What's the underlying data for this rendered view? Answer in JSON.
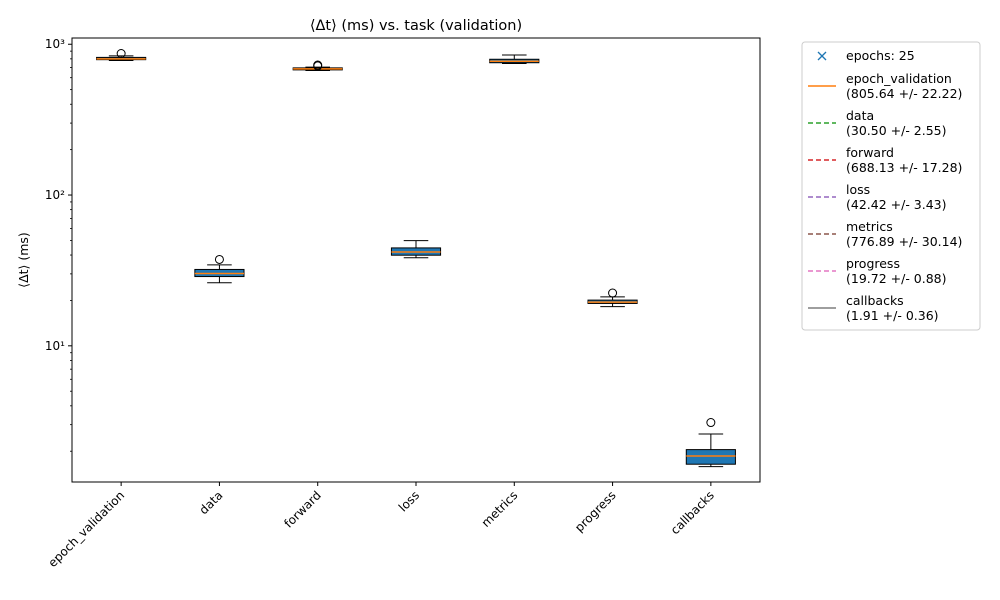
{
  "chart_data": {
    "type": "box",
    "title": "⟨Δt⟩ (ms) vs. task (validation)",
    "xlabel": "",
    "ylabel": "⟨Δt⟩ (ms)",
    "yscale": "log",
    "ylim": [
      1.25,
      1100
    ],
    "yticks": [
      {
        "value": 10,
        "label": "10¹"
      },
      {
        "value": 100,
        "label": "10²"
      },
      {
        "value": 1000,
        "label": "10³"
      }
    ],
    "grid": false,
    "legend_position": "outside-right",
    "categories": [
      "epoch_validation",
      "data",
      "forward",
      "loss",
      "metrics",
      "progress",
      "callbacks"
    ],
    "boxes": [
      {
        "category": "epoch_validation",
        "whislo": 780,
        "q1": 790,
        "med": 800,
        "q3": 818,
        "whishi": 838,
        "fliers": [
          868
        ]
      },
      {
        "category": "data",
        "whislo": 26.2,
        "q1": 28.8,
        "med": 30.2,
        "q3": 32.1,
        "whishi": 34.4,
        "fliers": [
          37.4
        ]
      },
      {
        "category": "forward",
        "whislo": 670,
        "q1": 676,
        "med": 686,
        "q3": 697,
        "whishi": 705,
        "fliers": [
          718,
          728
        ]
      },
      {
        "category": "loss",
        "whislo": 38.4,
        "q1": 39.9,
        "med": 41.9,
        "q3": 44.6,
        "whishi": 49.8,
        "fliers": []
      },
      {
        "category": "metrics",
        "whislo": 745,
        "q1": 754,
        "med": 771,
        "q3": 795,
        "whishi": 848,
        "fliers": []
      },
      {
        "category": "progress",
        "whislo": 18.2,
        "q1": 19.1,
        "med": 19.5,
        "q3": 20.1,
        "whishi": 21.1,
        "fliers": [
          22.4
        ]
      },
      {
        "category": "callbacks",
        "whislo": 1.58,
        "q1": 1.64,
        "med": 1.86,
        "q3": 2.05,
        "whishi": 2.6,
        "fliers": [
          3.1
        ]
      }
    ],
    "colors": {
      "box_fill": "#1f77b4",
      "median": "#ff7f0e",
      "epochs_marker": "#1f77b4"
    },
    "legend": [
      {
        "text": "epochs: 25",
        "text2": "",
        "color": "#1f77b4",
        "style": "marker-x"
      },
      {
        "text": "epoch_validation",
        "text2": "(805.64 +/- 22.22)",
        "color": "#ff7f0e",
        "style": "solid"
      },
      {
        "text": "data",
        "text2": "(30.50 +/- 2.55)",
        "color": "#2ca02c",
        "style": "dashed"
      },
      {
        "text": "forward",
        "text2": "(688.13 +/- 17.28)",
        "color": "#d62728",
        "style": "dashed"
      },
      {
        "text": "loss",
        "text2": "(42.42 +/- 3.43)",
        "color": "#9467bd",
        "style": "dashed"
      },
      {
        "text": "metrics",
        "text2": "(776.89 +/- 30.14)",
        "color": "#8c564b",
        "style": "dashed"
      },
      {
        "text": "progress",
        "text2": "(19.72 +/- 0.88)",
        "color": "#e377c2",
        "style": "dashed"
      },
      {
        "text": "callbacks",
        "text2": "(1.91 +/- 0.36)",
        "color": "#7f7f7f",
        "style": "solid"
      }
    ]
  }
}
